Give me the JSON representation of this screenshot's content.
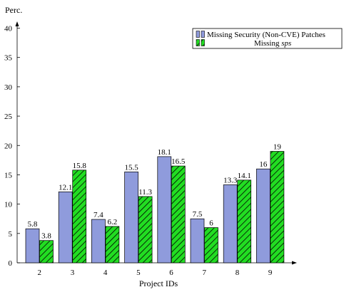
{
  "chart_data": {
    "type": "bar",
    "title": "",
    "xlabel": "Project IDs",
    "ylabel": "Perc.",
    "ylim": [
      0,
      40
    ],
    "yticks": [
      0,
      5,
      10,
      15,
      20,
      25,
      30,
      35,
      40
    ],
    "categories": [
      "2",
      "3",
      "4",
      "5",
      "6",
      "7",
      "8",
      "9"
    ],
    "series": [
      {
        "name": "Missing Security (Non-CVE) Patches",
        "color": "#8f9bdc",
        "pattern": "solid",
        "values": [
          5.8,
          12.1,
          7.4,
          15.5,
          18.1,
          7.5,
          13.3,
          16
        ],
        "labels": [
          "5.8",
          "12.1",
          "7.4",
          "15.5",
          "18.1",
          "7.5",
          "13.3",
          "16"
        ]
      },
      {
        "name_prefix": "Missing ",
        "name_italic": "sps",
        "color": "#22dd22",
        "pattern": "diagonal-hatch",
        "values": [
          3.8,
          15.8,
          6.2,
          11.3,
          16.5,
          6,
          14.1,
          19
        ],
        "labels": [
          "3.8",
          "15.8",
          "6.2",
          "11.3",
          "16.5",
          "6",
          "14.1",
          "19"
        ]
      }
    ],
    "legend_position": "top-right",
    "grid": false
  }
}
